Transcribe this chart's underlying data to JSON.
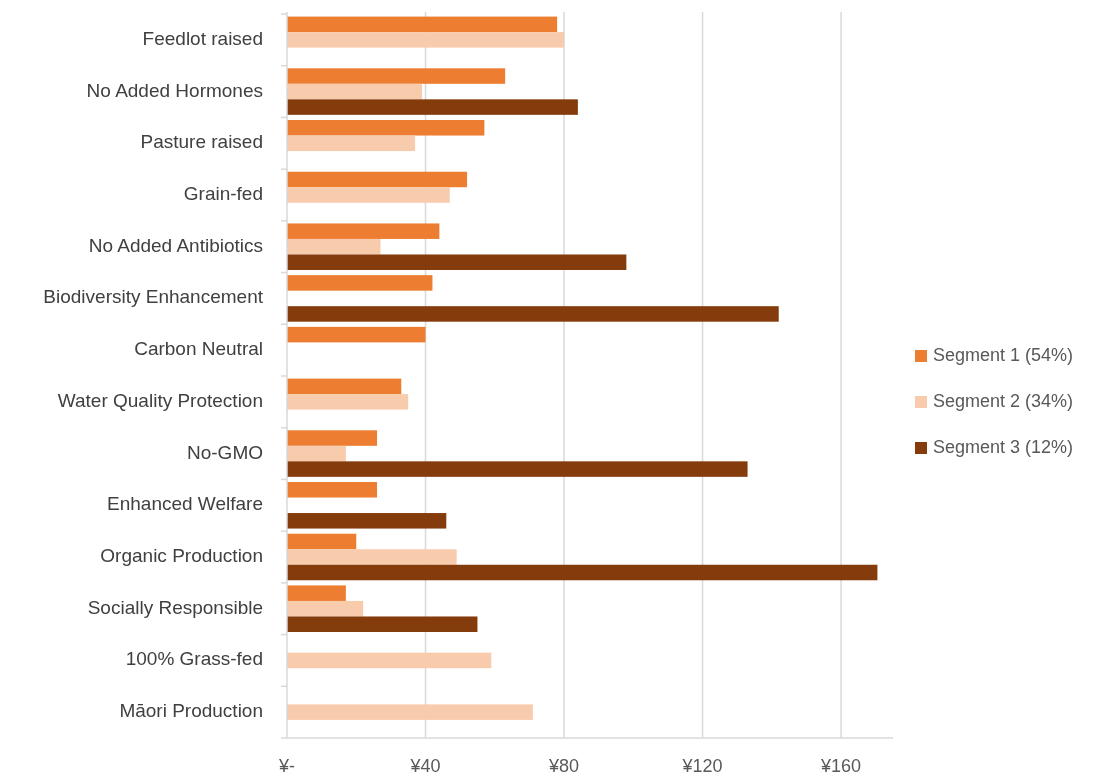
{
  "chart_data": {
    "type": "bar",
    "orientation": "horizontal",
    "categories": [
      "Feedlot raised",
      "No Added Hormones",
      "Pasture raised",
      "Grain-fed",
      "No Added Antibiotics",
      "Biodiversity Enhancement",
      "Carbon Neutral",
      "Water Quality Protection",
      "No-GMO",
      "Enhanced  Welfare",
      "Organic Production",
      "Socially Responsible",
      "100% Grass-fed",
      "Māori Production"
    ],
    "series": [
      {
        "name": "Segment 1 (54%)",
        "color": "#ed7d31",
        "values": [
          78,
          63,
          57,
          52,
          44,
          42,
          40,
          33,
          26,
          26,
          20,
          17,
          null,
          null
        ]
      },
      {
        "name": "Segment 2 (34%)",
        "color": "#f8cbad",
        "values": [
          80,
          39,
          37,
          47,
          27,
          null,
          null,
          35,
          17,
          null,
          49,
          22,
          59,
          71
        ]
      },
      {
        "name": "Segment 3 (12%)",
        "color": "#843c0c",
        "values": [
          null,
          84,
          null,
          null,
          98,
          142,
          null,
          null,
          133,
          46,
          170.5,
          55,
          null,
          null
        ]
      }
    ],
    "xlim": [
      0,
      175
    ],
    "xticks": [
      {
        "value": 0,
        "label": "¥-"
      },
      {
        "value": 40,
        "label": "¥40"
      },
      {
        "value": 80,
        "label": "¥80"
      },
      {
        "value": 120,
        "label": "¥120"
      },
      {
        "value": 160,
        "label": "¥160"
      }
    ],
    "grid": "x",
    "legend": "right"
  }
}
